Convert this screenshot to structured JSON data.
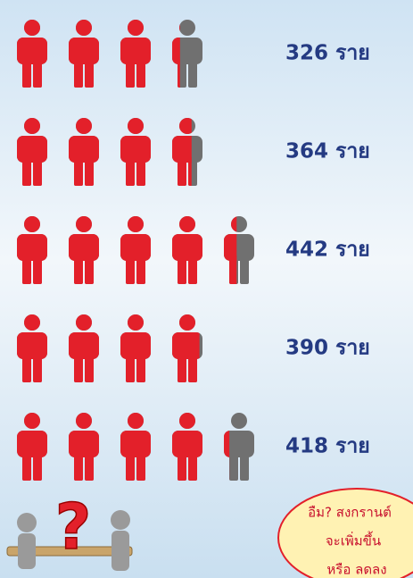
{
  "chart_data": {
    "type": "pictogram",
    "values": [
      326,
      364,
      442,
      390,
      418
    ],
    "value_labels": [
      "326 ราย",
      "364 ราย",
      "442 ราย",
      "390 ราย",
      "418 ราย"
    ],
    "color": "#e3202a",
    "empty_color": "#707070",
    "label_color": "#243a82",
    "annotations": [
      "อืม? สงกรานต์",
      "จะเพิ่มขึ้น",
      "หรือ ลดลง"
    ]
  }
}
